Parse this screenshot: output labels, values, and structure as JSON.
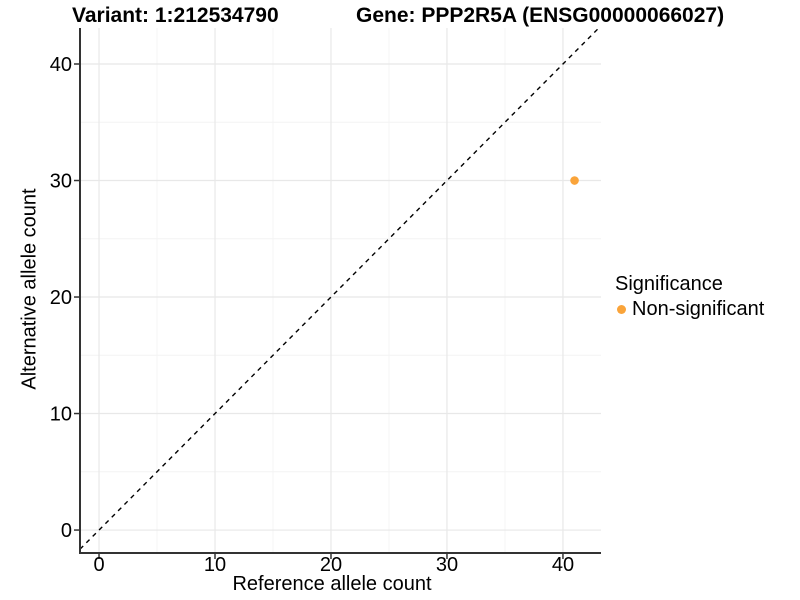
{
  "chart_data": {
    "type": "scatter",
    "title_left": "Variant: 1:212534790",
    "title_right": "Gene: PPP2R5A (ENSG00000066027)",
    "xlabel": "Reference allele count",
    "ylabel": "Alternative allele count",
    "xlim": [
      -1.64,
      43.28
    ],
    "ylim": [
      -1.97,
      43.09
    ],
    "x_major_ticks": [
      0,
      10,
      20,
      30,
      40
    ],
    "y_major_ticks": [
      0,
      10,
      20,
      30,
      40
    ],
    "x_minor_ticks": [
      5,
      15,
      25,
      35
    ],
    "y_minor_ticks": [
      5,
      15,
      25,
      35
    ],
    "grid": true,
    "reference_line": {
      "type": "identity",
      "style": "dashed",
      "color": "#000000"
    },
    "series": [
      {
        "name": "Non-significant",
        "color": "#FAA43A",
        "points": [
          {
            "x": 41,
            "y": 30
          }
        ]
      }
    ],
    "legend": {
      "title": "Significance",
      "position": "right",
      "items": [
        {
          "label": "Non-significant",
          "color": "#FAA43A"
        }
      ]
    },
    "colors": {
      "background": "#ffffff",
      "grid_major": "#e8e8e8",
      "grid_minor": "#f4f4f4",
      "axis_line": "#333333",
      "text": "#000000"
    }
  }
}
